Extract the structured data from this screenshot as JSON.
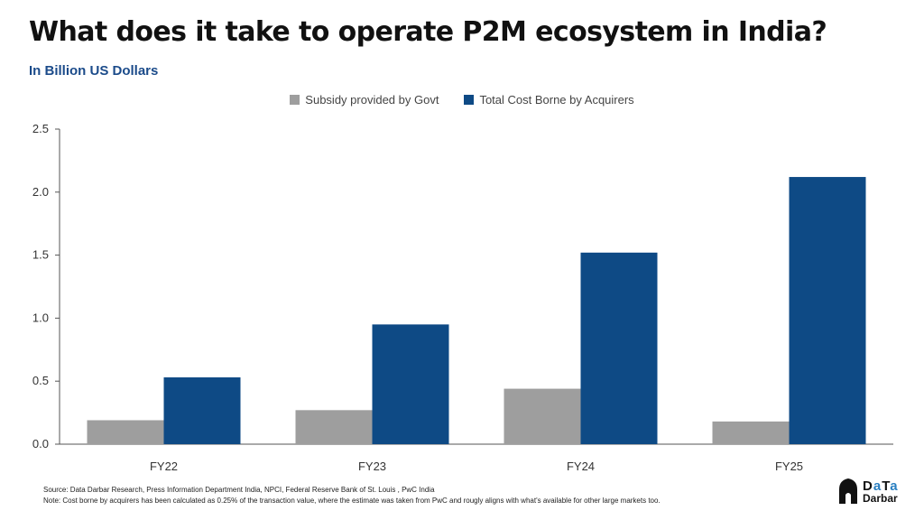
{
  "header": {
    "title": "What does it take to operate P2M ecosystem in India?",
    "subtitle": "In Billion US Dollars"
  },
  "colors": {
    "subsidy": "#9e9e9e",
    "acquirers": "#0e4a85",
    "subtitle": "#1b4b8a"
  },
  "chart_data": {
    "type": "bar",
    "title": "What does it take to operate P2M ecosystem in India?",
    "subtitle": "In Billion US Dollars",
    "xlabel": "",
    "ylabel": "",
    "categories": [
      "FY22",
      "FY23",
      "FY24",
      "FY25"
    ],
    "series": [
      {
        "name": "Subsidy provided by Govt",
        "values": [
          0.19,
          0.27,
          0.44,
          0.18
        ]
      },
      {
        "name": "Total Cost Borne by Acquirers",
        "values": [
          0.53,
          0.95,
          1.52,
          2.12
        ]
      }
    ],
    "ylim": [
      0,
      2.5
    ],
    "yticks": [
      "0.0",
      "0.5",
      "1.0",
      "1.5",
      "2.0",
      "2.5"
    ],
    "grid": false,
    "legend_position": "top-center"
  },
  "footer": {
    "source": "Source: Data Darbar Research, Press Information Department India, NPCI, Federal Reserve Bank of St. Louis , PwC India",
    "note": "Note: Cost borne by acquirers has been calculated as 0.25% of the transaction value, where the estimate was taken from PwC and rougly aligns with what's available for other large markets too."
  },
  "logo": {
    "line1_part1": "D",
    "line1_part2": "a",
    "line1_part3": "T",
    "line1_part4": "a",
    "line2": "Darbar"
  }
}
